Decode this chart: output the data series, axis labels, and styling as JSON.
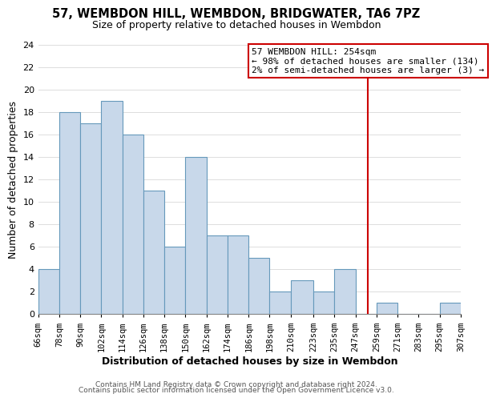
{
  "title": "57, WEMBDON HILL, WEMBDON, BRIDGWATER, TA6 7PZ",
  "subtitle": "Size of property relative to detached houses in Wembdon",
  "xlabel": "Distribution of detached houses by size in Wembdon",
  "ylabel": "Number of detached properties",
  "bin_edges": [
    66,
    78,
    90,
    102,
    114,
    126,
    138,
    150,
    162,
    174,
    186,
    198,
    210,
    223,
    235,
    247,
    259,
    271,
    283,
    295,
    307
  ],
  "counts": [
    4,
    18,
    17,
    19,
    16,
    11,
    6,
    14,
    7,
    7,
    5,
    2,
    3,
    2,
    4,
    0,
    1,
    0,
    0,
    1
  ],
  "bar_facecolor": "#c8d8ea",
  "bar_edgecolor": "#6699bb",
  "grid_color": "#dddddd",
  "vline_x": 254,
  "vline_color": "#cc0000",
  "annotation_line1": "57 WEMBDON HILL: 254sqm",
  "annotation_line2": "← 98% of detached houses are smaller (134)",
  "annotation_line3": "2% of semi-detached houses are larger (3) →",
  "ylim": [
    0,
    24
  ],
  "yticks": [
    0,
    2,
    4,
    6,
    8,
    10,
    12,
    14,
    16,
    18,
    20,
    22,
    24
  ],
  "tick_labels": [
    "66sqm",
    "78sqm",
    "90sqm",
    "102sqm",
    "114sqm",
    "126sqm",
    "138sqm",
    "150sqm",
    "162sqm",
    "174sqm",
    "186sqm",
    "198sqm",
    "210sqm",
    "223sqm",
    "235sqm",
    "247sqm",
    "259sqm",
    "271sqm",
    "283sqm",
    "295sqm",
    "307sqm"
  ],
  "footer_line1": "Contains HM Land Registry data © Crown copyright and database right 2024.",
  "footer_line2": "Contains public sector information licensed under the Open Government Licence v3.0.",
  "background_color": "#ffffff",
  "title_fontsize": 10.5,
  "subtitle_fontsize": 9,
  "tick_fontsize": 7.5,
  "ylabel_fontsize": 9,
  "xlabel_fontsize": 9,
  "annotation_fontsize": 8,
  "footer_fontsize": 6.5
}
